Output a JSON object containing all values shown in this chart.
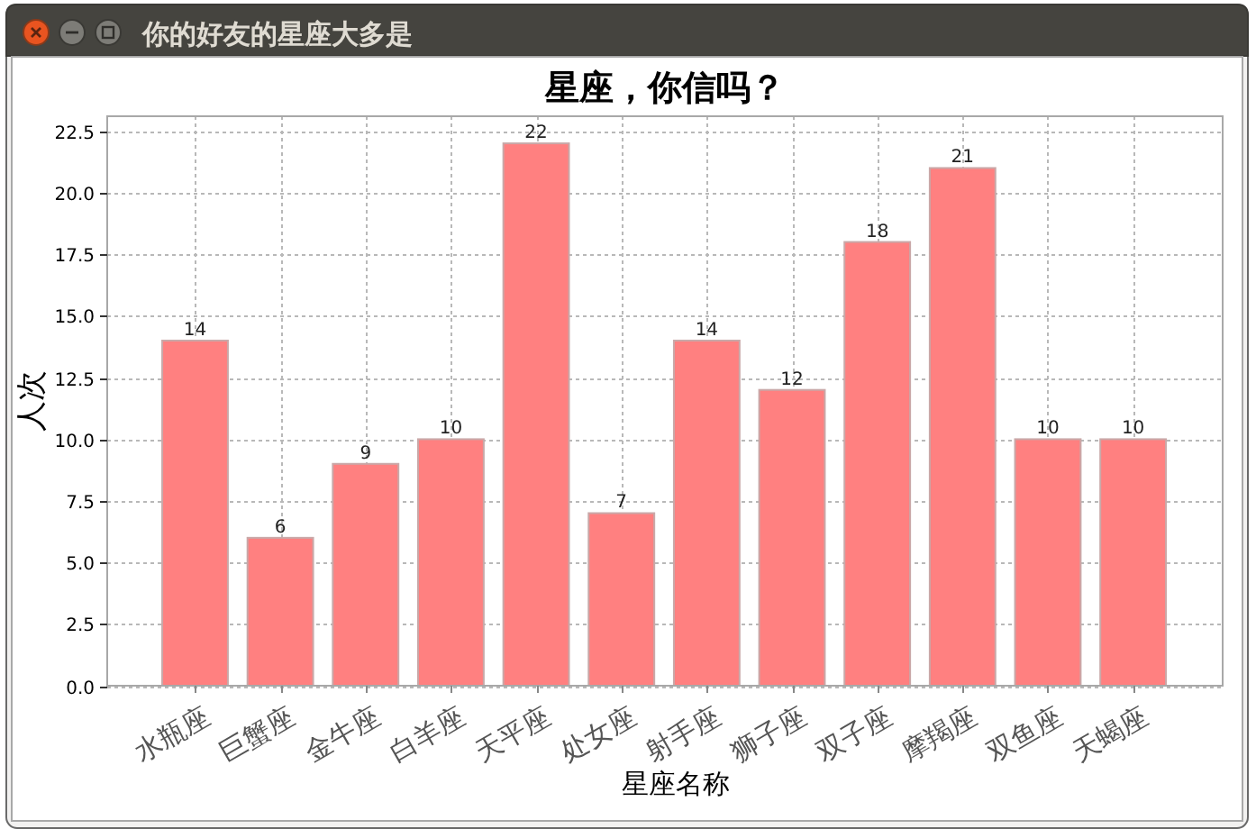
{
  "chart_data": {
    "type": "bar",
    "title": "星座，你信吗？",
    "xlabel": "星座名称",
    "ylabel": "人次",
    "annotations": [
      "你的好友的星座大多是"
    ],
    "categories": [
      "水瓶座",
      "巨蟹座",
      "金牛座",
      "白羊座",
      "天平座",
      "处女座",
      "射手座",
      "狮子座",
      "双子座",
      "摩羯座",
      "双鱼座",
      "天蝎座"
    ],
    "values": [
      14,
      6,
      9,
      10,
      22,
      7,
      14,
      12,
      18,
      21,
      10,
      10
    ],
    "color": "#ff8080",
    "ylim": [
      0,
      23.1
    ],
    "yticks": [
      {
        "value": 0,
        "label": "0.0"
      },
      2.5,
      {
        "value": 5,
        "label": "5.0"
      },
      7.5,
      {
        "value": 10,
        "label": "10.0"
      },
      12.5,
      {
        "value": 15,
        "label": "15.0"
      },
      17.5,
      {
        "value": 20,
        "label": "20.0"
      },
      22.5
    ],
    "grid": true,
    "data_labels": true
  }
}
